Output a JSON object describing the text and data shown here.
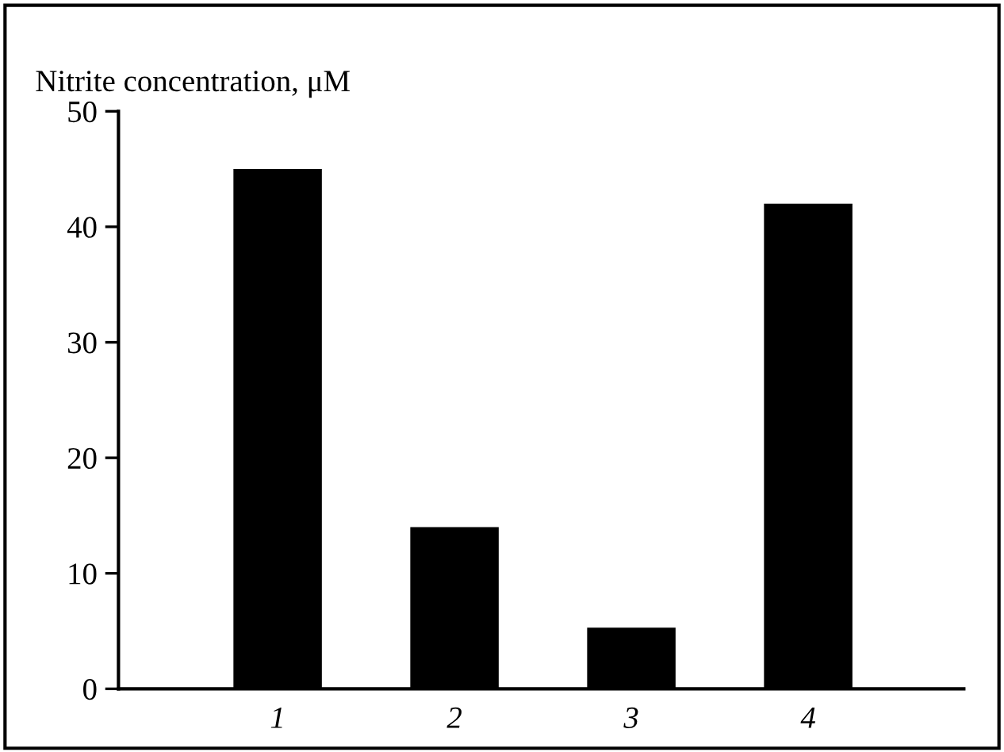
{
  "chart_data": {
    "type": "bar",
    "ylabel": "Nitrite concentration, μM",
    "categories": [
      "1",
      "2",
      "3",
      "4"
    ],
    "values": [
      45,
      14,
      5.3,
      42
    ],
    "color": "#000000",
    "ylim": [
      0,
      50
    ],
    "yticks": [
      0,
      10,
      20,
      30,
      40,
      50
    ],
    "grid": false,
    "legend": false
  }
}
